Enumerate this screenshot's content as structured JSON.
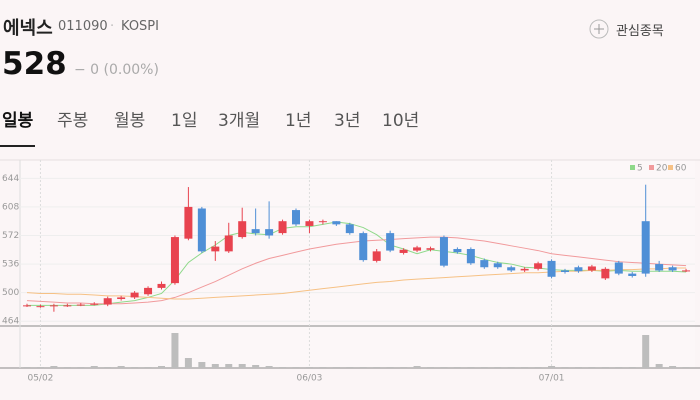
{
  "header": {
    "name": "에넥스",
    "code": "011090",
    "separator": "·",
    "market": "KOSPI",
    "watchlist": "관심종목",
    "price": "528",
    "change": "− 0 (0.00%)"
  },
  "tabs": [
    "일봉",
    "주봉",
    "월봉",
    "1일",
    "3개월",
    "1년",
    "3년",
    "10년"
  ],
  "chart_data": {
    "type": "candlestick",
    "categories": [
      null,
      "05/02",
      null,
      null,
      null,
      null,
      null,
      null,
      null,
      null,
      null,
      null,
      null,
      null,
      null,
      null,
      null,
      null,
      null,
      null,
      null,
      "06/03",
      null,
      null,
      null,
      null,
      null,
      null,
      null,
      null,
      null,
      null,
      null,
      null,
      null,
      null,
      null,
      null,
      null,
      "07/01",
      null,
      null,
      null,
      null,
      null,
      null,
      null,
      null,
      null,
      null
    ],
    "open": [
      484,
      483,
      484,
      484,
      485,
      486,
      485,
      492,
      494,
      498,
      506,
      512,
      568,
      606,
      552,
      552,
      570,
      580,
      580,
      575,
      604,
      584,
      590,
      590,
      586,
      575,
      540,
      575,
      550,
      553,
      554,
      570,
      555,
      555,
      541,
      537,
      532,
      528,
      530,
      540,
      528,
      532,
      528,
      518,
      538,
      524,
      590,
      536,
      532,
      528
    ],
    "high": [
      486,
      485,
      486,
      486,
      487,
      488,
      495,
      496,
      502,
      508,
      514,
      572,
      633,
      608,
      565,
      588,
      607,
      606,
      615,
      592,
      606,
      592,
      592,
      590,
      588,
      577,
      555,
      578,
      556,
      559,
      558,
      572,
      557,
      557,
      543,
      539,
      534,
      532,
      539,
      542,
      530,
      534,
      535,
      532,
      540,
      526,
      636,
      540,
      534,
      530
    ],
    "low": [
      482,
      481,
      476,
      482,
      483,
      484,
      483,
      490,
      492,
      496,
      504,
      510,
      566,
      550,
      540,
      550,
      568,
      572,
      568,
      573,
      584,
      575,
      586,
      584,
      573,
      539,
      538,
      551,
      548,
      551,
      552,
      532,
      549,
      535,
      530,
      530,
      526,
      526,
      528,
      518,
      524,
      525,
      526,
      516,
      522,
      519,
      520,
      526,
      526,
      526
    ],
    "close": [
      484,
      483,
      484,
      484,
      485,
      486,
      493,
      494,
      500,
      506,
      511,
      570,
      608,
      552,
      558,
      572,
      590,
      575,
      572,
      590,
      586,
      590,
      590,
      586,
      575,
      541,
      552,
      553,
      554,
      557,
      556,
      534,
      551,
      537,
      532,
      532,
      528,
      530,
      537,
      520,
      526,
      527,
      533,
      530,
      524,
      521,
      524,
      528,
      528,
      528
    ],
    "up_color": "#e8434f",
    "down_color": "#4f8fd6",
    "series": [
      {
        "name": "5",
        "color": "#8fd98a",
        "values": [
          484,
          484,
          484,
          484,
          484,
          484,
          486,
          488,
          490,
          494,
          499,
          516,
          538,
          550,
          560,
          572,
          576,
          574,
          573,
          581,
          583,
          583,
          586,
          589,
          587,
          582,
          573,
          560,
          555,
          549,
          554,
          552,
          550,
          547,
          542,
          538,
          536,
          532,
          531,
          529,
          528,
          528,
          528,
          527,
          528,
          527,
          527,
          527,
          527,
          526
        ]
      },
      {
        "name": "20",
        "color": "#f19a9c",
        "values": [
          490,
          489,
          488,
          487,
          487,
          486,
          486,
          486,
          487,
          488,
          490,
          494,
          500,
          507,
          514,
          522,
          530,
          537,
          543,
          547,
          551,
          555,
          558,
          561,
          563,
          565,
          566,
          567,
          568,
          569,
          570,
          570,
          569,
          567,
          565,
          562,
          559,
          556,
          553,
          549,
          547,
          545,
          543,
          541,
          539,
          538,
          537,
          536,
          535,
          534
        ]
      },
      {
        "name": "60",
        "color": "#f6c185",
        "values": [
          500,
          499,
          499,
          498,
          498,
          497,
          496,
          496,
          495,
          494,
          493,
          492,
          492,
          493,
          494,
          495,
          496,
          497,
          498,
          499,
          501,
          503,
          505,
          507,
          509,
          511,
          513,
          514,
          516,
          517,
          518,
          519,
          520,
          521,
          522,
          523,
          524,
          525,
          525,
          526,
          527,
          527,
          528,
          528,
          529,
          529,
          530,
          530,
          531,
          531
        ]
      }
    ],
    "volume": [
      1,
      1,
      2,
      1,
      1,
      2,
      1,
      2,
      1,
      1,
      2,
      35,
      10,
      6,
      4,
      4,
      4,
      3,
      2,
      1,
      1,
      1,
      1,
      1,
      1,
      1,
      1,
      1,
      1,
      2,
      1,
      1,
      1,
      1,
      1,
      1,
      1,
      1,
      1,
      2,
      1,
      1,
      1,
      1,
      1,
      1,
      33,
      4,
      2,
      1
    ],
    "volume_color": "#bdbdbd",
    "vlim": [
      0,
      38
    ],
    "ylim": [
      458,
      657
    ],
    "yticks": [
      464,
      500,
      536,
      572,
      608,
      644
    ],
    "grid": true
  }
}
